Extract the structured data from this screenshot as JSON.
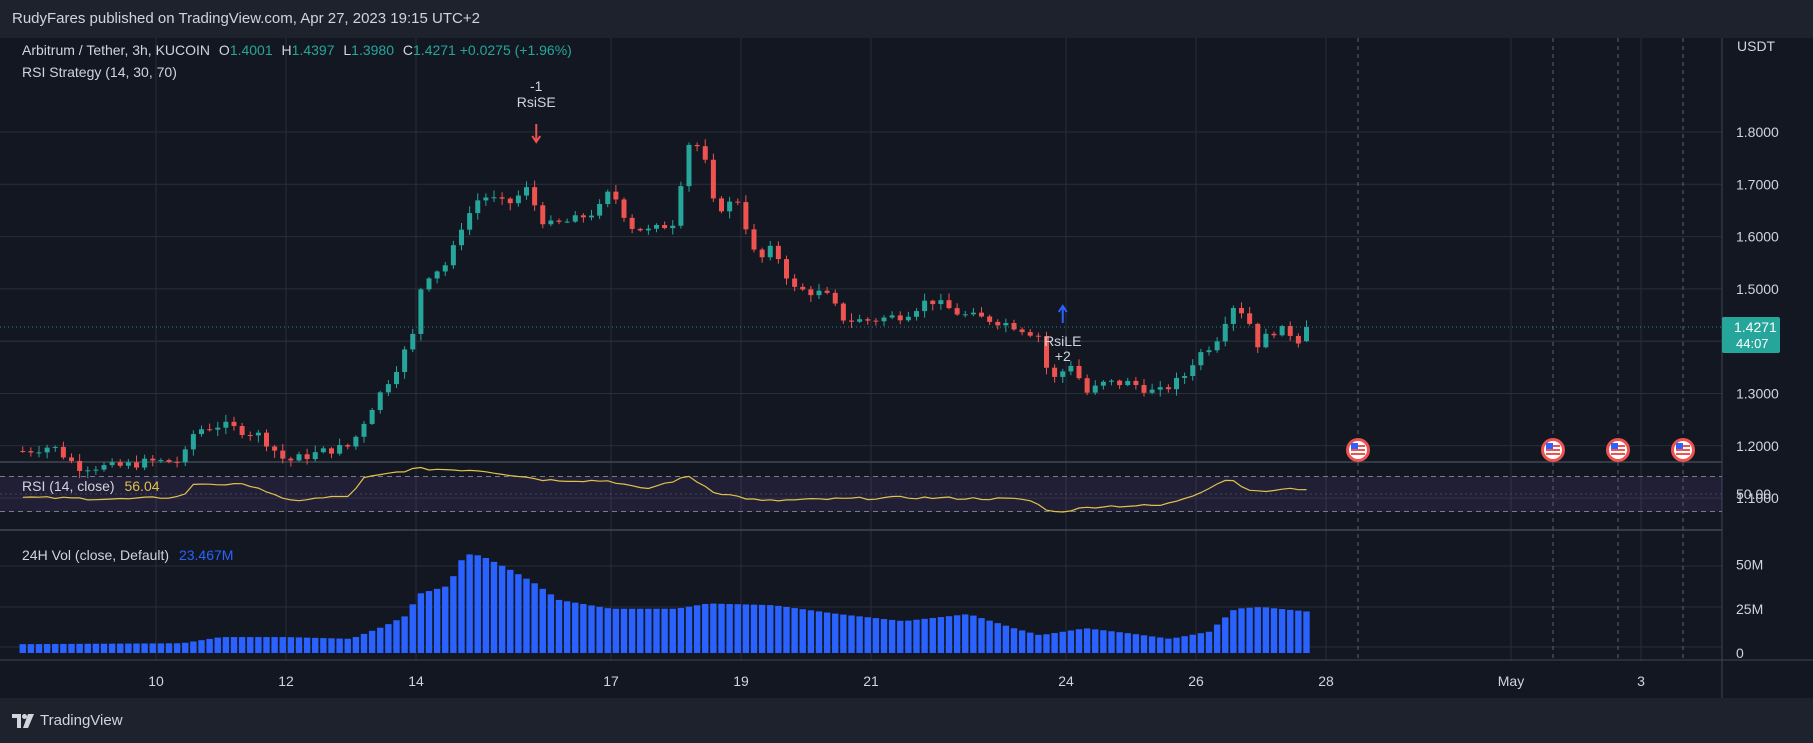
{
  "header": {
    "publisher": "RudyFares published on TradingView.com, Apr 27, 2023 19:15 UTC+2"
  },
  "symbol": {
    "name": "Arbitrum / Tether, 3h, KUCOIN",
    "open_label": "O",
    "open": "1.4001",
    "high_label": "H",
    "high": "1.4397",
    "low_label": "L",
    "low": "1.3980",
    "close_label": "C",
    "close": "1.4271",
    "change": "+0.0275 (+1.96%)"
  },
  "strategy": {
    "label": "RSI Strategy (14, 30, 70)"
  },
  "price_scale": {
    "currency": "USDT",
    "ticks": [
      "1.8000",
      "1.7000",
      "1.6000",
      "1.5000",
      "1.3000",
      "1.2000",
      "1.1000"
    ],
    "last_price": "1.4271",
    "countdown": "44:07"
  },
  "annotations": {
    "short": {
      "count": "-1",
      "label": "RsiSE"
    },
    "long": {
      "label": "RsiLE",
      "count": "+2"
    }
  },
  "rsi": {
    "label": "RSI (14, close)",
    "value": "56.04",
    "tick": "50.00",
    "upper": 70,
    "lower": 30
  },
  "volume": {
    "label": "24H Vol (close, Default)",
    "value": "23.467M",
    "ticks": [
      "50M",
      "25M",
      "0"
    ]
  },
  "time_axis": {
    "ticks": [
      "10",
      "12",
      "14",
      "17",
      "19",
      "21",
      "24",
      "26",
      "28",
      "May",
      "3"
    ]
  },
  "colors": {
    "up": "#26a69a",
    "down": "#ef5350",
    "rsi_line": "#e0c24a",
    "rsi_band": "#7e57c2",
    "volume": "#2962ff",
    "grid": "#2a2e39",
    "background": "#131722"
  },
  "icons": {
    "events": "us-flag-icon",
    "logo": "tradingview-logo-icon"
  },
  "footer": {
    "brand": "TradingView"
  },
  "chart_data": {
    "type": "candlestick",
    "interval": "3h",
    "ylim": [
      1.08,
      1.83
    ],
    "x_labels": [
      "10",
      "12",
      "14",
      "17",
      "19",
      "21",
      "24",
      "26",
      "28",
      "May",
      "3"
    ],
    "price_anchors": [
      {
        "day": 8.0,
        "close": 1.19
      },
      {
        "day": 8.4,
        "close": 1.2
      },
      {
        "day": 8.8,
        "close": 1.16
      },
      {
        "day": 9.4,
        "close": 1.16
      },
      {
        "day": 9.9,
        "close": 1.17
      },
      {
        "day": 10.4,
        "close": 1.17
      },
      {
        "day": 10.6,
        "close": 1.23
      },
      {
        "day": 11.0,
        "close": 1.24
      },
      {
        "day": 11.6,
        "close": 1.22
      },
      {
        "day": 12.0,
        "close": 1.17
      },
      {
        "day": 12.6,
        "close": 1.19
      },
      {
        "day": 13.0,
        "close": 1.2
      },
      {
        "day": 13.3,
        "close": 1.27
      },
      {
        "day": 13.7,
        "close": 1.35
      },
      {
        "day": 13.95,
        "close": 1.41
      },
      {
        "day": 14.1,
        "close": 1.52
      },
      {
        "day": 14.5,
        "close": 1.55
      },
      {
        "day": 14.7,
        "close": 1.62
      },
      {
        "day": 15.0,
        "close": 1.68
      },
      {
        "day": 15.4,
        "close": 1.66
      },
      {
        "day": 15.7,
        "close": 1.69
      },
      {
        "day": 16.0,
        "close": 1.62
      },
      {
        "day": 16.4,
        "close": 1.63
      },
      {
        "day": 16.8,
        "close": 1.65
      },
      {
        "day": 17.0,
        "close": 1.69
      },
      {
        "day": 17.3,
        "close": 1.62
      },
      {
        "day": 17.6,
        "close": 1.61
      },
      {
        "day": 18.0,
        "close": 1.63
      },
      {
        "day": 18.15,
        "close": 1.78
      },
      {
        "day": 18.4,
        "close": 1.77
      },
      {
        "day": 18.6,
        "close": 1.65
      },
      {
        "day": 18.95,
        "close": 1.67
      },
      {
        "day": 19.25,
        "close": 1.55
      },
      {
        "day": 19.5,
        "close": 1.58
      },
      {
        "day": 19.8,
        "close": 1.5
      },
      {
        "day": 20.3,
        "close": 1.49
      },
      {
        "day": 20.6,
        "close": 1.44
      },
      {
        "day": 21.0,
        "close": 1.44
      },
      {
        "day": 21.5,
        "close": 1.45
      },
      {
        "day": 21.9,
        "close": 1.48
      },
      {
        "day": 22.4,
        "close": 1.45
      },
      {
        "day": 22.9,
        "close": 1.44
      },
      {
        "day": 23.2,
        "close": 1.43
      },
      {
        "day": 23.6,
        "close": 1.41
      },
      {
        "day": 23.75,
        "close": 1.32
      },
      {
        "day": 24.1,
        "close": 1.36
      },
      {
        "day": 24.3,
        "close": 1.3
      },
      {
        "day": 24.6,
        "close": 1.32
      },
      {
        "day": 25.0,
        "close": 1.32
      },
      {
        "day": 25.4,
        "close": 1.3
      },
      {
        "day": 25.8,
        "close": 1.33
      },
      {
        "day": 26.0,
        "close": 1.37
      },
      {
        "day": 26.3,
        "close": 1.4
      },
      {
        "day": 26.55,
        "close": 1.47
      },
      {
        "day": 26.8,
        "close": 1.45
      },
      {
        "day": 26.9,
        "close": 1.39
      },
      {
        "day": 27.2,
        "close": 1.42
      },
      {
        "day": 27.4,
        "close": 1.42
      },
      {
        "day": 27.6,
        "close": 1.4
      },
      {
        "day": 27.7,
        "close": 1.427
      }
    ],
    "last": {
      "open": 1.4001,
      "high": 1.4397,
      "low": 1.398,
      "close": 1.4271
    },
    "signals": [
      {
        "name": "RsiSE",
        "day": 15.85,
        "qty": -1,
        "side": "short"
      },
      {
        "name": "RsiLE",
        "day": 23.95,
        "qty": 2,
        "side": "long"
      }
    ],
    "event_days": [
      28.5,
      31.5,
      32.5,
      33.5
    ],
    "volume_anchors_m": [
      {
        "day": 8.0,
        "v": 5
      },
      {
        "day": 10.4,
        "v": 5.5
      },
      {
        "day": 11.0,
        "v": 9
      },
      {
        "day": 12.0,
        "v": 9
      },
      {
        "day": 13.0,
        "v": 8
      },
      {
        "day": 13.5,
        "v": 15
      },
      {
        "day": 13.9,
        "v": 22
      },
      {
        "day": 14.0,
        "v": 33
      },
      {
        "day": 14.5,
        "v": 38
      },
      {
        "day": 14.75,
        "v": 56
      },
      {
        "day": 15.0,
        "v": 55
      },
      {
        "day": 15.4,
        "v": 48
      },
      {
        "day": 15.8,
        "v": 40
      },
      {
        "day": 16.2,
        "v": 30
      },
      {
        "day": 17.0,
        "v": 25
      },
      {
        "day": 18.0,
        "v": 25
      },
      {
        "day": 18.5,
        "v": 28
      },
      {
        "day": 19.5,
        "v": 27
      },
      {
        "day": 20.5,
        "v": 22
      },
      {
        "day": 21.5,
        "v": 18
      },
      {
        "day": 22.5,
        "v": 22
      },
      {
        "day": 23.2,
        "v": 14
      },
      {
        "day": 23.6,
        "v": 10
      },
      {
        "day": 24.3,
        "v": 14
      },
      {
        "day": 25.0,
        "v": 11
      },
      {
        "day": 25.6,
        "v": 8
      },
      {
        "day": 26.2,
        "v": 12
      },
      {
        "day": 26.6,
        "v": 25
      },
      {
        "day": 27.0,
        "v": 26
      },
      {
        "day": 27.7,
        "v": 23.467
      }
    ],
    "vol_ylim": [
      0,
      62
    ],
    "rsi_anchors": [
      {
        "day": 8.0,
        "v": 46
      },
      {
        "day": 9.5,
        "v": 44
      },
      {
        "day": 10.4,
        "v": 47
      },
      {
        "day": 10.6,
        "v": 62
      },
      {
        "day": 11.5,
        "v": 60
      },
      {
        "day": 12.0,
        "v": 42
      },
      {
        "day": 13.0,
        "v": 48
      },
      {
        "day": 13.2,
        "v": 68
      },
      {
        "day": 14.0,
        "v": 79
      },
      {
        "day": 15.0,
        "v": 77
      },
      {
        "day": 16.0,
        "v": 66
      },
      {
        "day": 17.0,
        "v": 65
      },
      {
        "day": 17.5,
        "v": 55
      },
      {
        "day": 18.2,
        "v": 70
      },
      {
        "day": 18.6,
        "v": 52
      },
      {
        "day": 19.3,
        "v": 42
      },
      {
        "day": 20.3,
        "v": 44
      },
      {
        "day": 21.5,
        "v": 46
      },
      {
        "day": 22.5,
        "v": 45
      },
      {
        "day": 23.4,
        "v": 44
      },
      {
        "day": 23.8,
        "v": 29
      },
      {
        "day": 24.5,
        "v": 36
      },
      {
        "day": 25.5,
        "v": 37
      },
      {
        "day": 26.0,
        "v": 50
      },
      {
        "day": 26.5,
        "v": 68
      },
      {
        "day": 26.9,
        "v": 52
      },
      {
        "day": 27.3,
        "v": 55
      },
      {
        "day": 27.7,
        "v": 56.04
      }
    ]
  }
}
